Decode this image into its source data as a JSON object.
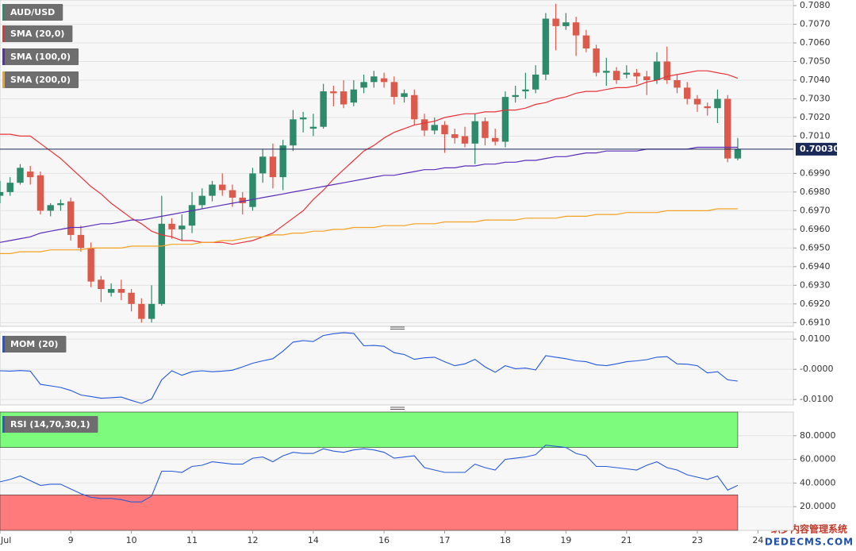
{
  "chart_data": [
    {
      "type": "candlestick",
      "candles": {
        "name": "AUD/USD",
        "color": "#2d8a6a",
        "color_down": "#dc5a4c",
        "open": [
          0.6978,
          0.698,
          0.6985,
          0.6991,
          0.6989,
          0.697,
          0.6973,
          0.6975,
          0.6957,
          0.695,
          0.6933,
          0.6926,
          0.6928,
          0.6926,
          0.692,
          0.6912,
          0.692,
          0.6963,
          0.696,
          0.6962,
          0.6973,
          0.6978,
          0.6984,
          0.6981,
          0.6977,
          0.6972,
          0.699,
          0.6999,
          0.6988,
          0.7005,
          0.7019,
          0.7014,
          0.7015,
          0.7034,
          0.7034,
          0.7028,
          0.7036,
          0.7039,
          0.7041,
          0.7039,
          0.7031,
          0.7032,
          0.7019,
          0.7013,
          0.7016,
          0.7011,
          0.701,
          0.7006,
          0.7018,
          0.7009,
          0.7007,
          0.7031,
          0.7034,
          0.7035,
          0.7043,
          0.7073,
          0.7069,
          0.7071,
          0.7064,
          0.7057,
          0.7044,
          0.7045,
          0.7043,
          0.7044,
          0.7042,
          0.704,
          0.705,
          0.704,
          0.7036,
          0.703,
          0.7026,
          0.7025,
          0.703,
          0.6998
        ],
        "high": [
          0.6986,
          0.6988,
          0.6995,
          0.6994,
          0.6991,
          0.6974,
          0.6976,
          0.6977,
          0.6962,
          0.6953,
          0.6935,
          0.6931,
          0.6933,
          0.6928,
          0.6923,
          0.693,
          0.6978,
          0.6966,
          0.6968,
          0.698,
          0.6982,
          0.6986,
          0.699,
          0.6984,
          0.698,
          0.6993,
          0.7003,
          0.7006,
          0.7008,
          0.7024,
          0.7023,
          0.7022,
          0.7038,
          0.7037,
          0.704,
          0.704,
          0.7043,
          0.7045,
          0.7044,
          0.7042,
          0.7035,
          0.7035,
          0.7022,
          0.702,
          0.7018,
          0.7014,
          0.7015,
          0.7022,
          0.702,
          0.7014,
          0.7034,
          0.7037,
          0.7044,
          0.7048,
          0.7076,
          0.7081,
          0.7076,
          0.7074,
          0.7067,
          0.7059,
          0.7052,
          0.7047,
          0.7048,
          0.7046,
          0.7045,
          0.7055,
          0.7058,
          0.7043,
          0.7039,
          0.7032,
          0.7028,
          0.7035,
          0.7032,
          0.7009
        ],
        "low": [
          0.6974,
          0.6978,
          0.6984,
          0.6984,
          0.6968,
          0.6967,
          0.697,
          0.6954,
          0.6948,
          0.6929,
          0.6921,
          0.6924,
          0.6922,
          0.6916,
          0.691,
          0.691,
          0.6919,
          0.6955,
          0.6954,
          0.6958,
          0.6971,
          0.6975,
          0.6978,
          0.6972,
          0.6968,
          0.697,
          0.6985,
          0.6982,
          0.6981,
          0.7002,
          0.7012,
          0.701,
          0.7014,
          0.7026,
          0.7025,
          0.7026,
          0.7033,
          0.7036,
          0.7036,
          0.7027,
          0.7028,
          0.7016,
          0.701,
          0.7011,
          0.7001,
          0.7006,
          0.7004,
          0.6995,
          0.7005,
          0.7005,
          0.7004,
          0.7028,
          0.703,
          0.7033,
          0.704,
          0.7056,
          0.7067,
          0.7053,
          0.7055,
          0.7042,
          0.7037,
          0.7038,
          0.7041,
          0.7038,
          0.7032,
          0.7038,
          0.7038,
          0.7033,
          0.7027,
          0.7023,
          0.7021,
          0.7017,
          0.6996,
          0.6997
        ],
        "close": [
          0.698,
          0.6985,
          0.6993,
          0.6988,
          0.697,
          0.6973,
          0.6974,
          0.6957,
          0.695,
          0.6932,
          0.6928,
          0.6928,
          0.6926,
          0.692,
          0.6912,
          0.692,
          0.6963,
          0.696,
          0.6962,
          0.6973,
          0.6978,
          0.6984,
          0.6981,
          0.6977,
          0.6974,
          0.699,
          0.6999,
          0.6988,
          0.7005,
          0.7019,
          0.702,
          0.7015,
          0.7034,
          0.7033,
          0.7027,
          0.7035,
          0.7039,
          0.7042,
          0.7039,
          0.7031,
          0.7033,
          0.7019,
          0.7013,
          0.7016,
          0.7011,
          0.7009,
          0.7006,
          0.7018,
          0.7009,
          0.7007,
          0.7031,
          0.7032,
          0.7035,
          0.7043,
          0.7073,
          0.7069,
          0.7071,
          0.7064,
          0.7057,
          0.7044,
          0.7045,
          0.704,
          0.7044,
          0.7042,
          0.704,
          0.705,
          0.704,
          0.7036,
          0.703,
          0.7027,
          0.7025,
          0.703,
          0.6998,
          0.7003
        ]
      },
      "lines": [
        {
          "name": "SMA (20,0)",
          "color": "#e8323a",
          "values": [
            0.7011,
            0.7011,
            0.701,
            0.701,
            0.7006,
            0.7002,
            0.6998,
            0.6993,
            0.6988,
            0.6983,
            0.6979,
            0.6974,
            0.697,
            0.6966,
            0.6963,
            0.6959,
            0.6957,
            0.6956,
            0.6954,
            0.6954,
            0.6953,
            0.6953,
            0.6953,
            0.6952,
            0.6953,
            0.6954,
            0.6956,
            0.6958,
            0.6962,
            0.6966,
            0.697,
            0.6976,
            0.6981,
            0.6987,
            0.6992,
            0.6997,
            0.7002,
            0.7005,
            0.7009,
            0.7012,
            0.7014,
            0.7016,
            0.7017,
            0.7018,
            0.702,
            0.7021,
            0.7022,
            0.7022,
            0.7023,
            0.7023,
            0.7024,
            0.7024,
            0.7025,
            0.7027,
            0.7028,
            0.703,
            0.7031,
            0.7033,
            0.7034,
            0.7034,
            0.7035,
            0.7036,
            0.7036,
            0.7037,
            0.7039,
            0.704,
            0.7042,
            0.7043,
            0.7044,
            0.7045,
            0.7045,
            0.7044,
            0.7043,
            0.7041
          ]
        },
        {
          "name": "SMA (100,0)",
          "color": "#5a2db8",
          "values": [
            0.6953,
            0.6954,
            0.6955,
            0.6956,
            0.6958,
            0.6959,
            0.696,
            0.6961,
            0.6961,
            0.6962,
            0.6963,
            0.6963,
            0.6964,
            0.6965,
            0.6965,
            0.6966,
            0.6967,
            0.6968,
            0.6969,
            0.697,
            0.6971,
            0.6972,
            0.6973,
            0.6974,
            0.6975,
            0.6976,
            0.6977,
            0.6978,
            0.6979,
            0.698,
            0.6981,
            0.6982,
            0.6983,
            0.6984,
            0.6985,
            0.6986,
            0.6987,
            0.6988,
            0.6989,
            0.6989,
            0.699,
            0.6991,
            0.6992,
            0.6992,
            0.6993,
            0.6993,
            0.6994,
            0.6994,
            0.6995,
            0.6995,
            0.6996,
            0.6996,
            0.6997,
            0.6997,
            0.6998,
            0.6999,
            0.6999,
            0.7,
            0.7001,
            0.7001,
            0.7002,
            0.7002,
            0.7002,
            0.7002,
            0.7003,
            0.7003,
            0.7003,
            0.7003,
            0.7003,
            0.7004,
            0.7004,
            0.7004,
            0.7004,
            0.7004
          ]
        },
        {
          "name": "SMA (200,0)",
          "color": "#f3a224",
          "values": [
            0.6947,
            0.6947,
            0.6948,
            0.6948,
            0.6948,
            0.6949,
            0.6949,
            0.6949,
            0.6949,
            0.695,
            0.695,
            0.695,
            0.695,
            0.6951,
            0.6951,
            0.6951,
            0.6951,
            0.6952,
            0.6952,
            0.6952,
            0.6953,
            0.6953,
            0.6954,
            0.6954,
            0.6955,
            0.6956,
            0.6956,
            0.6957,
            0.6957,
            0.6958,
            0.6958,
            0.6959,
            0.6959,
            0.696,
            0.696,
            0.6961,
            0.6961,
            0.6961,
            0.6962,
            0.6962,
            0.6962,
            0.6963,
            0.6963,
            0.6963,
            0.6964,
            0.6964,
            0.6964,
            0.6964,
            0.6965,
            0.6965,
            0.6965,
            0.6965,
            0.6966,
            0.6966,
            0.6966,
            0.6966,
            0.6967,
            0.6967,
            0.6967,
            0.6968,
            0.6968,
            0.6968,
            0.6969,
            0.6969,
            0.6969,
            0.6969,
            0.697,
            0.697,
            0.697,
            0.697,
            0.697,
            0.6971,
            0.6971,
            0.6971
          ]
        }
      ],
      "last_price": {
        "value": 0.7003,
        "label": "0.70030"
      },
      "ylim": [
        0.6908,
        0.7083
      ],
      "yticks": [
        {
          "value": 0.708,
          "label": "0.7080"
        },
        {
          "value": 0.707,
          "label": "0.7070"
        },
        {
          "value": 0.706,
          "label": "0.7060"
        },
        {
          "value": 0.705,
          "label": "0.7050"
        },
        {
          "value": 0.704,
          "label": "0.7040"
        },
        {
          "value": 0.703,
          "label": "0.7030"
        },
        {
          "value": 0.702,
          "label": "0.7020"
        },
        {
          "value": 0.701,
          "label": "0.7010"
        },
        {
          "value": 0.699,
          "label": "0.6990"
        },
        {
          "value": 0.698,
          "label": "0.6980"
        },
        {
          "value": 0.697,
          "label": "0.6970"
        },
        {
          "value": 0.696,
          "label": "0.6960"
        },
        {
          "value": 0.695,
          "label": "0.6950"
        },
        {
          "value": 0.694,
          "label": "0.6940"
        },
        {
          "value": 0.693,
          "label": "0.6930"
        },
        {
          "value": 0.692,
          "label": "0.6920"
        },
        {
          "value": 0.691,
          "label": "0.6910"
        }
      ],
      "grid": true
    },
    {
      "type": "line",
      "series": [
        {
          "name": "MOM (20)",
          "color": "#2357db",
          "values": [
            -0.0005,
            -0.0006,
            -0.0004,
            -0.0006,
            -0.005,
            -0.0055,
            -0.006,
            -0.007,
            -0.0085,
            -0.009,
            -0.0096,
            -0.0094,
            -0.0092,
            -0.0103,
            -0.0113,
            -0.0098,
            -0.0035,
            -0.0005,
            -0.002,
            -0.0008,
            -0.0005,
            -0.0008,
            -0.0006,
            -0.0003,
            0.0008,
            0.002,
            0.0028,
            0.0035,
            0.006,
            0.009,
            0.0095,
            0.0092,
            0.0112,
            0.0118,
            0.0121,
            0.0119,
            0.0078,
            0.0079,
            0.0076,
            0.0055,
            0.0049,
            0.0033,
            0.0038,
            0.004,
            0.0025,
            0.0012,
            0.0018,
            0.0033,
            0.0008,
            -0.001,
            0.0012,
            0.0002,
            0.0004,
            -0.0002,
            0.0045,
            0.004,
            0.0035,
            0.0028,
            0.0025,
            0.0015,
            0.0012,
            0.0018,
            0.0025,
            0.0028,
            0.0032,
            0.004,
            0.0042,
            0.0018,
            0.0017,
            0.0012,
            -0.0012,
            -0.0008,
            -0.0035,
            -0.0039
          ]
        }
      ],
      "ylim": [
        -0.0118,
        0.0124
      ],
      "yticks": [
        {
          "value": 0.01,
          "label": "0.0100"
        },
        {
          "value": 0,
          "label": "-0.0000"
        },
        {
          "value": -0.01,
          "label": "-0.0100"
        }
      ],
      "grid": true
    },
    {
      "type": "line",
      "series": [
        {
          "name": "RSI (14,70,30,1)",
          "color": "#2a5bd7",
          "values": [
            41,
            43,
            46,
            42,
            38,
            39,
            39,
            35,
            31,
            28,
            27,
            27,
            26,
            24,
            24,
            29,
            50,
            50,
            49,
            54,
            55,
            58,
            57,
            56,
            56,
            61,
            62,
            58,
            63,
            66,
            65,
            65,
            69,
            67,
            66,
            68,
            69,
            68,
            66,
            61,
            62,
            63,
            53,
            51,
            49,
            49,
            49,
            56,
            53,
            51,
            60,
            61,
            62,
            64,
            72,
            71,
            70,
            65,
            63,
            54,
            54,
            53,
            52,
            51,
            55,
            58,
            53,
            51,
            47,
            45,
            43,
            46,
            34,
            38
          ]
        }
      ],
      "overbought": 70,
      "oversold": 30,
      "ylim": [
        0,
        100
      ],
      "yticks": [
        {
          "value": 80,
          "label": "80.0000"
        },
        {
          "value": 60,
          "label": "60.0000"
        },
        {
          "value": 40,
          "label": "40.0000"
        },
        {
          "value": 20,
          "label": "20.0000"
        }
      ],
      "xlim": [
        0,
        78.5
      ],
      "xticks": [
        {
          "value": 0,
          "label": "Jul"
        },
        {
          "value": 7,
          "label": "9"
        },
        {
          "value": 13,
          "label": "10"
        },
        {
          "value": 19,
          "label": "11"
        },
        {
          "value": 25,
          "label": "12"
        },
        {
          "value": 31,
          "label": "14"
        },
        {
          "value": 38,
          "label": "16"
        },
        {
          "value": 44,
          "label": "17"
        },
        {
          "value": 50,
          "label": "18"
        },
        {
          "value": 56,
          "label": "19"
        },
        {
          "value": 62,
          "label": "21"
        },
        {
          "value": 69,
          "label": "23"
        },
        {
          "value": 75,
          "label": "24"
        }
      ],
      "grid": true
    }
  ],
  "watermark": {
    "line1": "织梦内容管理系统",
    "line2": "DEDECMS.COM"
  }
}
